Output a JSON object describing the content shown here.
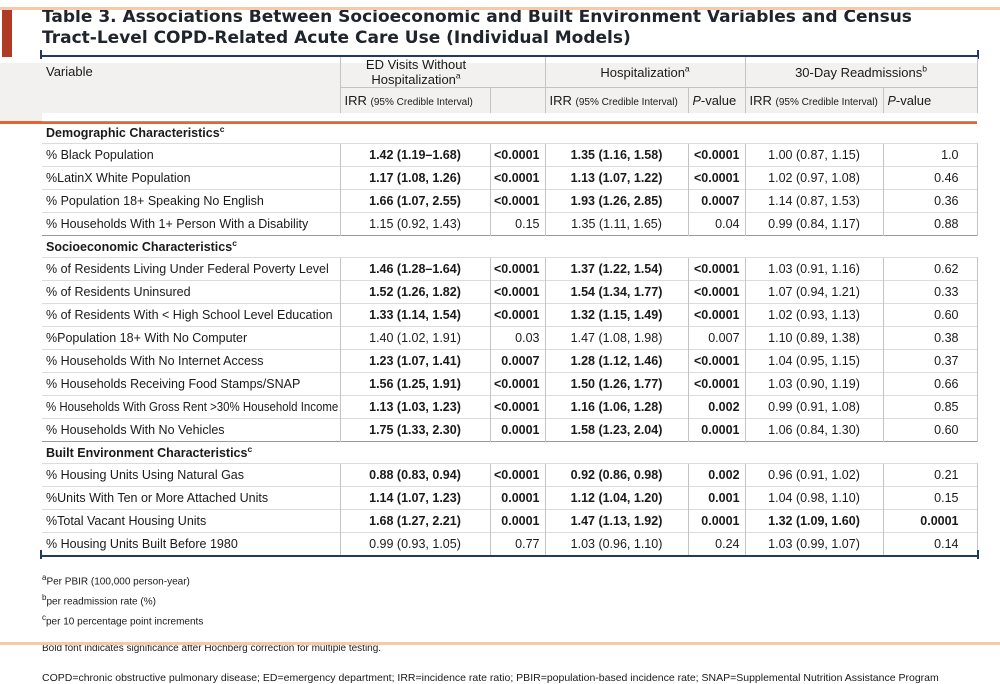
{
  "title": "Table 3. Associations Between Socioeconomic and Built Environment Variables and Census Tract-Level COPD-Related Acute Care Use (Individual Models)",
  "header": {
    "variable_label": "Variable",
    "groups": [
      {
        "label": "ED Visits Without Hospitalization",
        "sup": "a"
      },
      {
        "label": "Hospitalization",
        "sup": "a"
      },
      {
        "label": "30-Day Readmissions",
        "sup": "b"
      }
    ],
    "sub_irr": "IRR",
    "sub_irr_paren": "(95% Credible Interval)",
    "sub_p_italic": "P",
    "sub_p_rest": "-value"
  },
  "sections": [
    {
      "label": "Demographic Characteristics",
      "sup": "c",
      "rows": [
        {
          "label": "% Black Population",
          "cells": [
            [
              "1.42 (1.19–1.68)",
              1
            ],
            [
              "<0.0001",
              1
            ],
            [
              "1.35 (1.16, 1.58)",
              1
            ],
            [
              "<0.0001",
              1
            ],
            [
              "1.00 (0.87, 1.15)",
              0
            ],
            [
              "1.0",
              0
            ]
          ]
        },
        {
          "label": "%LatinX White Population",
          "cells": [
            [
              "1.17 (1.08, 1.26)",
              1
            ],
            [
              "<0.0001",
              1
            ],
            [
              "1.13 (1.07, 1.22)",
              1
            ],
            [
              "<0.0001",
              1
            ],
            [
              "1.02 (0.97, 1.08)",
              0
            ],
            [
              "0.46",
              0
            ]
          ]
        },
        {
          "label": "% Population 18+ Speaking No English",
          "cells": [
            [
              "1.66 (1.07, 2.55)",
              1
            ],
            [
              "<0.0001",
              1
            ],
            [
              "1.93 (1.26, 2.85)",
              1
            ],
            [
              "0.0007",
              1
            ],
            [
              "1.14 (0.87, 1.53)",
              0
            ],
            [
              "0.36",
              0
            ]
          ]
        },
        {
          "label": "% Households With 1+ Person With a Disability",
          "cells": [
            [
              "1.15 (0.92, 1.43)",
              0
            ],
            [
              "0.15",
              0
            ],
            [
              "1.35 (1.11, 1.65)",
              0
            ],
            [
              "0.04",
              0
            ],
            [
              "0.99 (0.84, 1.17)",
              0
            ],
            [
              "0.88",
              0
            ]
          ]
        }
      ]
    },
    {
      "label": "Socioeconomic Characteristics",
      "sup": "c",
      "rows": [
        {
          "label": "% of Residents Living Under Federal Poverty Level",
          "cells": [
            [
              "1.46 (1.28–1.64)",
              1
            ],
            [
              "<0.0001",
              1
            ],
            [
              "1.37 (1.22, 1.54)",
              1
            ],
            [
              "<0.0001",
              1
            ],
            [
              "1.03 (0.91, 1.16)",
              0
            ],
            [
              "0.62",
              0
            ]
          ]
        },
        {
          "label": "% of Residents Uninsured",
          "cells": [
            [
              "1.52 (1.26, 1.82)",
              1
            ],
            [
              "<0.0001",
              1
            ],
            [
              "1.54 (1.34, 1.77)",
              1
            ],
            [
              "<0.0001",
              1
            ],
            [
              "1.07 (0.94, 1.21)",
              0
            ],
            [
              "0.33",
              0
            ]
          ]
        },
        {
          "label": "% of Residents With < High School Level Education",
          "cells": [
            [
              "1.33 (1.14, 1.54)",
              1
            ],
            [
              "<0.0001",
              1
            ],
            [
              "1.32 (1.15, 1.49)",
              1
            ],
            [
              "<0.0001",
              1
            ],
            [
              "1.02 (0.93, 1.13)",
              0
            ],
            [
              "0.60",
              0
            ]
          ]
        },
        {
          "label": "%Population 18+ With No Computer",
          "cells": [
            [
              "1.40 (1.02, 1.91)",
              0
            ],
            [
              "0.03",
              0
            ],
            [
              "1.47 (1.08, 1.98)",
              0
            ],
            [
              "0.007",
              0
            ],
            [
              "1.10 (0.89, 1.38)",
              0
            ],
            [
              "0.38",
              0
            ]
          ]
        },
        {
          "label": "% Households With No Internet Access",
          "cells": [
            [
              "1.23 (1.07, 1.41)",
              1
            ],
            [
              "0.0007",
              1
            ],
            [
              "1.28 (1.12, 1.46)",
              1
            ],
            [
              "<0.0001",
              1
            ],
            [
              "1.04 (0.95, 1.15)",
              0
            ],
            [
              "0.37",
              0
            ]
          ]
        },
        {
          "label": "% Households Receiving Food Stamps/SNAP",
          "cells": [
            [
              "1.56 (1.25, 1.91)",
              1
            ],
            [
              "<0.0001",
              1
            ],
            [
              "1.50 (1.26, 1.77)",
              1
            ],
            [
              "<0.0001",
              1
            ],
            [
              "1.03 (0.90, 1.19)",
              0
            ],
            [
              "0.66",
              0
            ]
          ]
        },
        {
          "label": "% Households With Gross Rent >30% Household Income",
          "cells": [
            [
              "1.13 (1.03, 1.23)",
              1
            ],
            [
              "<0.0001",
              1
            ],
            [
              "1.16 (1.06, 1.28)",
              1
            ],
            [
              "0.002",
              1
            ],
            [
              "0.99 (0.91, 1.08)",
              0
            ],
            [
              "0.85",
              0
            ]
          ]
        },
        {
          "label": "% Households With No Vehicles",
          "cells": [
            [
              "1.75 (1.33, 2.30)",
              1
            ],
            [
              "0.0001",
              1
            ],
            [
              "1.58 (1.23, 2.04)",
              1
            ],
            [
              "0.0001",
              1
            ],
            [
              "1.06 (0.84, 1.30)",
              0
            ],
            [
              "0.60",
              0
            ]
          ]
        }
      ]
    },
    {
      "label": "Built Environment Characteristics",
      "sup": "c",
      "rows": [
        {
          "label": "% Housing Units Using Natural Gas",
          "cells": [
            [
              "0.88 (0.83, 0.94)",
              1
            ],
            [
              "<0.0001",
              1
            ],
            [
              "0.92 (0.86, 0.98)",
              1
            ],
            [
              "0.002",
              1
            ],
            [
              "0.96 (0.91, 1.02)",
              0
            ],
            [
              "0.21",
              0
            ]
          ]
        },
        {
          "label": "%Units With Ten or More Attached Units",
          "cells": [
            [
              "1.14 (1.07, 1.23)",
              1
            ],
            [
              "0.0001",
              1
            ],
            [
              "1.12 (1.04, 1.20)",
              1
            ],
            [
              "0.001",
              1
            ],
            [
              "1.04 (0.98, 1.10)",
              0
            ],
            [
              "0.15",
              0
            ]
          ]
        },
        {
          "label": "%Total Vacant Housing Units",
          "cells": [
            [
              "1.68 (1.27, 2.21)",
              1
            ],
            [
              "0.0001",
              1
            ],
            [
              "1.47 (1.13, 1.92)",
              1
            ],
            [
              "0.0001",
              1
            ],
            [
              "1.32 (1.09, 1.60)",
              1
            ],
            [
              "0.0001",
              1
            ]
          ]
        },
        {
          "label": "% Housing Units Built Before 1980",
          "cells": [
            [
              "0.99 (0.93, 1.05)",
              0
            ],
            [
              "0.77",
              0
            ],
            [
              "1.03 (0.96, 1.10)",
              0
            ],
            [
              "0.24",
              0
            ],
            [
              "1.03 (0.99, 1.07)",
              0
            ],
            [
              "0.14",
              0
            ]
          ]
        }
      ]
    }
  ],
  "footnotes": [
    {
      "sup": "a",
      "text": "Per PBIR (100,000 person-year)"
    },
    {
      "sup": "b",
      "text": "per readmission rate (%)"
    },
    {
      "sup": "c",
      "text": "per 10 percentage point increments"
    }
  ],
  "significance_note": "Bold font indicates significance after Hochberg correction for multiple testing.",
  "abbreviations": "COPD=chronic obstructive pulmonary disease; ED=emergency department; IRR=incidence rate ratio; PBIR=population-based incidence rate; SNAP=Supplemental Nutrition Assistance Program",
  "colors": {
    "navy_rule": "#1f3a63",
    "orange_rule": "#e8632e",
    "red_accent_bar": "#b13a27",
    "peach_edge": "#f7c9a8",
    "header_background": "#f2f1ef"
  }
}
